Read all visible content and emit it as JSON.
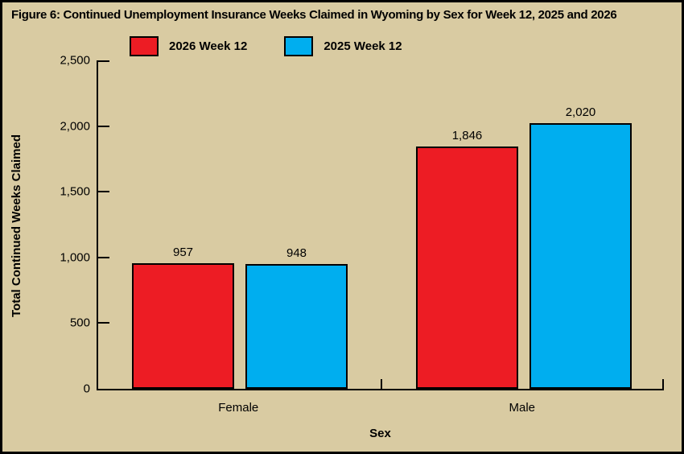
{
  "figure": {
    "title": "Figure 6: Continued Unemployment Insurance Weeks Claimed in Wyoming by Sex for Week 12, 2025 and 2026"
  },
  "colors": {
    "background": "#d9cba2",
    "border": "#000000",
    "axis": "#000000",
    "text": "#000000",
    "series_2026": "#ed1c24",
    "series_2025": "#00aeef"
  },
  "chart_data": {
    "type": "bar",
    "title": "Figure 6: Continued Unemployment Insurance Weeks Claimed in Wyoming by Sex for Week 12, 2025 and 2026",
    "categories": [
      "Female",
      "Male"
    ],
    "series": [
      {
        "name": "2026 Week 12",
        "color": "#ed1c24",
        "values": [
          957,
          1846
        ],
        "labels": [
          "957",
          "1,846"
        ]
      },
      {
        "name": "2025 Week 12",
        "color": "#00aeef",
        "values": [
          948,
          2020
        ],
        "labels": [
          "948",
          "2,020"
        ]
      }
    ],
    "xlabel": "Sex",
    "ylabel": "Total Continued Weeks Claimed",
    "ylim": [
      0,
      2500
    ],
    "yticks": [
      0,
      500,
      1000,
      1500,
      2000,
      2500
    ],
    "ytick_labels": [
      "0",
      "500",
      "1,000",
      "1,500",
      "2,000",
      "2,500"
    ],
    "legend_position": "top-left",
    "grid": false,
    "bar_value_labels_shown": true
  }
}
